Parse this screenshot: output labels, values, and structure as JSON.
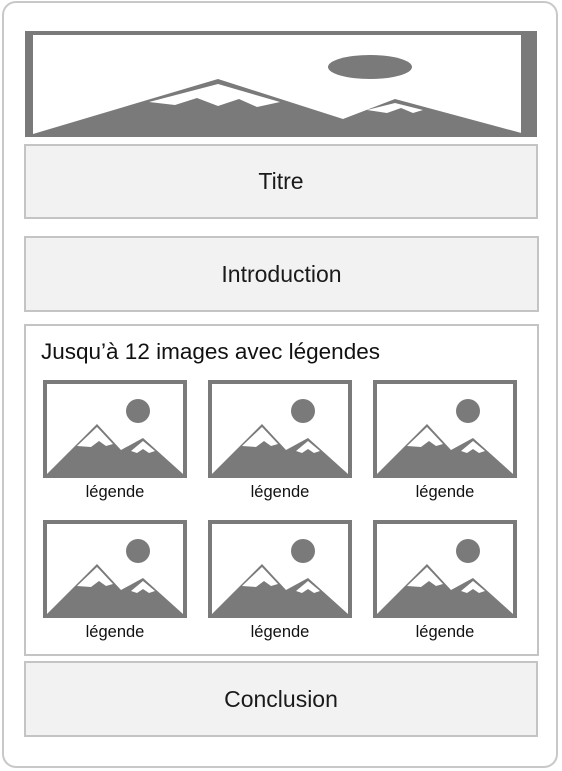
{
  "sections": {
    "title": "Titre",
    "introduction": "Introduction",
    "gallery_heading": "Jusqu’à 12 images avec légendes",
    "conclusion": "Conclusion"
  },
  "gallery": {
    "items": [
      {
        "caption": "légende",
        "icon": "image-placeholder-icon"
      },
      {
        "caption": "légende",
        "icon": "image-placeholder-icon"
      },
      {
        "caption": "légende",
        "icon": "image-placeholder-icon"
      },
      {
        "caption": "légende",
        "icon": "image-placeholder-icon"
      },
      {
        "caption": "légende",
        "icon": "image-placeholder-icon"
      },
      {
        "caption": "légende",
        "icon": "image-placeholder-icon"
      }
    ]
  },
  "colors": {
    "box_fill": "#f2f2f2",
    "border": "#c4c4c4",
    "placeholder_gray": "#7a7a7a"
  }
}
